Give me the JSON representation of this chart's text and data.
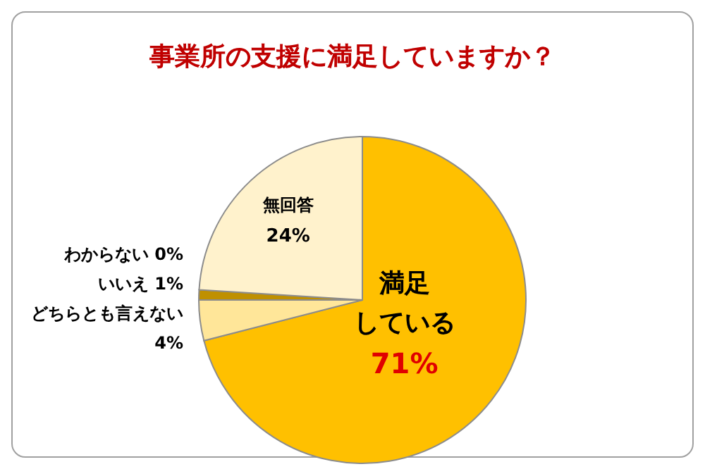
{
  "chart_data": {
    "type": "pie",
    "title": "事業所の支援に満足していますか？",
    "categories": [
      "満足している",
      "どちらとも言えない",
      "いいえ",
      "わからない",
      "無回答"
    ],
    "values": [
      71,
      4,
      1,
      0,
      24
    ],
    "value_labels": [
      "71%",
      "4%",
      "1%",
      "0%",
      "24%"
    ],
    "colors": [
      "#ffc000",
      "#ffe699",
      "#bf9000",
      "#7f6000",
      "#fff2cc"
    ],
    "legend": false
  }
}
